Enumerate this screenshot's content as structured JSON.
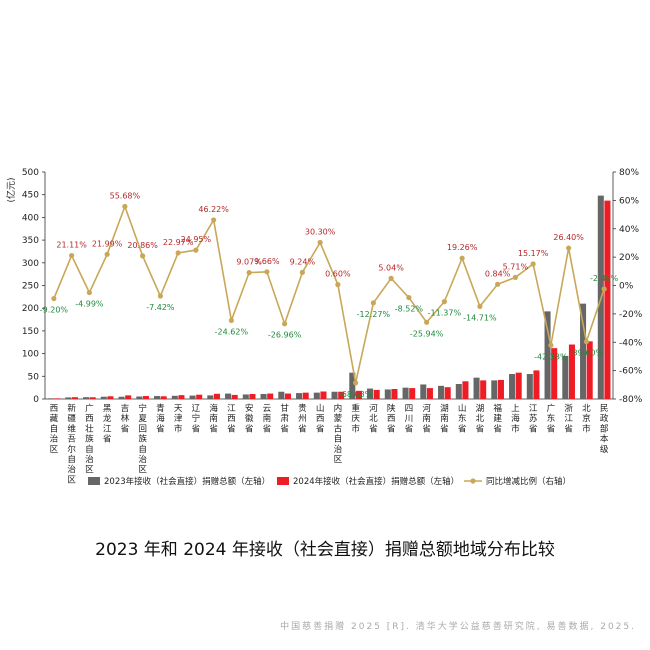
{
  "chart_data": {
    "type": "bar",
    "title": "2023 年和 2024 年接收（社会直接）捐赠总额地域分布比较",
    "ylabel_left": "(亿元)",
    "ylim_left": [
      0,
      500
    ],
    "yticks_left": [
      "0",
      "50",
      "100",
      "150",
      "200",
      "250",
      "300",
      "350",
      "400",
      "450",
      "500"
    ],
    "ylim_right": [
      -80,
      80
    ],
    "yticks_right": [
      "-80%",
      "-60%",
      "-40%",
      "-20%",
      "0%",
      "20%",
      "40%",
      "60%",
      "80%"
    ],
    "categories": [
      "西藏自治区",
      "新疆维吾尔自治区",
      "广西壮族自治区",
      "黑龙江省",
      "吉林省",
      "宁夏回族自治区",
      "青海省",
      "天津市",
      "辽宁省",
      "海南省",
      "江西省",
      "安徽省",
      "云南省",
      "甘肃省",
      "贵州省",
      "山西省",
      "内蒙古自治区",
      "重庆市",
      "河北省",
      "陕西省",
      "四川省",
      "河南省",
      "湖南省",
      "山东省",
      "湖北省",
      "福建省",
      "上海市",
      "江苏省",
      "广东省",
      "浙江省",
      "北京市",
      "民政部本级"
    ],
    "series": [
      {
        "name": "2023年接收（社会直接）捐赠总额（左轴）",
        "kind": "bar",
        "axis": "left",
        "color": "#666666",
        "values": [
          1.5,
          3.5,
          4,
          5,
          5,
          5.5,
          6.5,
          7,
          7.5,
          8,
          12,
          10,
          11,
          16,
          13,
          14,
          16,
          58,
          23,
          21,
          25,
          32,
          29,
          33,
          47,
          41,
          55,
          55,
          193,
          95,
          210,
          448
        ]
      },
      {
        "name": "2024年接收（社会直接）捐赠总额（左轴）",
        "kind": "bar",
        "axis": "left",
        "color": "#ee1c25",
        "values": [
          1.4,
          4,
          3.8,
          6,
          8,
          6.5,
          6,
          8.5,
          9.5,
          11.5,
          9,
          11,
          12,
          12,
          14,
          16.5,
          16,
          18,
          20,
          22,
          24,
          24,
          26,
          39,
          41,
          42,
          58,
          63,
          112,
          120,
          127,
          437
        ]
      },
      {
        "name": "同比增减比例（右轴）",
        "kind": "line",
        "axis": "right",
        "color": "#c8a858",
        "values": [
          -9.2,
          21.11,
          -4.99,
          21.99,
          55.68,
          20.86,
          -7.42,
          22.97,
          24.95,
          46.22,
          -24.62,
          9.07,
          9.66,
          -26.96,
          9.24,
          30.3,
          0.6,
          -68.63,
          -12.27,
          5.04,
          -8.52,
          -25.94,
          -11.37,
          19.26,
          -14.71,
          0.84,
          5.71,
          15.17,
          -42.13,
          26.4,
          -39.6,
          -2.48
        ],
        "labels": [
          "-9.20%",
          "21.11%",
          "-4.99%",
          "21.99%",
          "55.68%",
          "20.86%",
          "-7.42%",
          "22.97%",
          "24.95%",
          "46.22%",
          "-24.62%",
          "9.07%",
          "9.66%",
          "-26.96%",
          "9.24%",
          "30.30%",
          "0.60%",
          "-68.63%",
          "-12.27%",
          "5.04%",
          "-8.52%",
          "-25.94%",
          "-11.37%",
          "19.26%",
          "-14.71%",
          "0.84%",
          "5.71%",
          "15.17%",
          "-42.13%",
          "26.40%",
          "-39.60%",
          "-2.48%"
        ]
      }
    ],
    "legend_position": "bottom",
    "positive_label_color": "#b5282a",
    "negative_label_color": "#1f8a3c"
  },
  "source": "中国慈善捐赠 2025 [R]. 清华大学公益慈善研究院, 易善数据, 2025."
}
